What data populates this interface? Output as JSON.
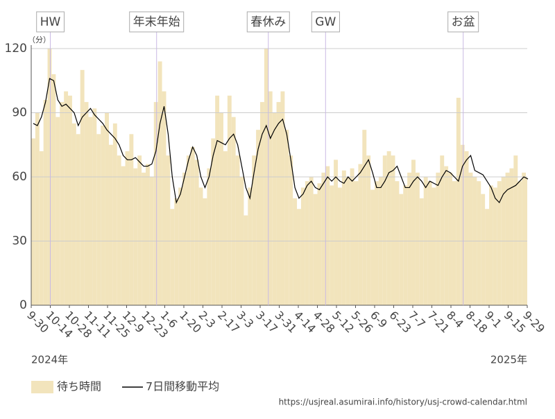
{
  "chart_data": {
    "type": "bar_line",
    "unit_label": "（分）",
    "x": [
      0,
      3,
      6,
      9,
      12,
      15,
      18,
      21,
      24,
      27,
      30,
      33,
      36,
      39,
      42,
      45,
      48,
      51,
      54,
      57,
      60,
      63,
      66,
      69,
      72,
      75,
      78,
      81,
      84,
      87,
      90,
      93,
      96,
      99,
      102,
      105,
      108,
      111,
      114,
      117,
      120,
      123,
      126,
      129,
      132,
      135,
      138,
      141,
      144,
      147,
      150,
      153,
      156,
      159,
      162,
      165,
      168,
      171,
      174,
      177,
      180,
      183,
      186,
      189,
      192,
      195,
      198,
      201,
      204,
      207,
      210,
      213,
      216,
      219,
      222,
      225,
      228,
      231,
      234,
      237,
      240,
      243,
      246,
      249,
      252,
      255,
      258,
      261,
      264,
      267,
      270,
      273,
      276,
      279,
      282,
      285,
      288,
      291,
      294,
      297,
      300,
      303,
      306,
      309,
      312,
      315,
      318,
      321,
      324,
      327,
      330,
      333,
      336,
      339,
      342,
      345,
      348,
      351,
      354,
      357,
      360,
      363
    ],
    "series": [
      {
        "name": "待ち時間",
        "color": "#f2e4bc",
        "values": [
          78,
          90,
          72,
          96,
          120,
          108,
          88,
          95,
          100,
          98,
          85,
          80,
          110,
          95,
          88,
          92,
          80,
          84,
          90,
          75,
          85,
          70,
          65,
          72,
          80,
          64,
          70,
          62,
          66,
          60,
          95,
          114,
          100,
          70,
          45,
          50,
          55,
          62,
          70,
          74,
          68,
          55,
          50,
          64,
          78,
          98,
          90,
          72,
          98,
          88,
          70,
          60,
          42,
          55,
          70,
          82,
          95,
          120,
          100,
          90,
          95,
          100,
          82,
          70,
          50,
          45,
          55,
          58,
          60,
          52,
          57,
          62,
          65,
          56,
          68,
          55,
          63,
          60,
          64,
          58,
          66,
          82,
          70,
          54,
          58,
          60,
          70,
          72,
          70,
          58,
          52,
          56,
          62,
          68,
          62,
          50,
          60,
          58,
          55,
          62,
          70,
          65,
          62,
          58,
          97,
          75,
          72,
          62,
          60,
          58,
          52,
          45,
          56,
          55,
          58,
          60,
          62,
          64,
          70,
          58,
          62,
          60
        ]
      },
      {
        "name": "7日間移動平均",
        "color": "#000000",
        "values": [
          85,
          84,
          88,
          95,
          106,
          105,
          96,
          93,
          94,
          92,
          90,
          84,
          88,
          90,
          92,
          89,
          87,
          85,
          82,
          80,
          78,
          75,
          70,
          68,
          68,
          69,
          67,
          65,
          65,
          66,
          72,
          85,
          93,
          80,
          60,
          48,
          52,
          60,
          68,
          74,
          70,
          60,
          55,
          60,
          70,
          77,
          76,
          75,
          78,
          80,
          75,
          65,
          55,
          50,
          62,
          73,
          80,
          84,
          78,
          82,
          85,
          87,
          80,
          68,
          55,
          50,
          52,
          56,
          58,
          55,
          54,
          57,
          60,
          58,
          60,
          58,
          57,
          60,
          58,
          60,
          62,
          65,
          68,
          62,
          55,
          55,
          58,
          62,
          63,
          65,
          60,
          55,
          55,
          58,
          60,
          58,
          55,
          58,
          57,
          56,
          60,
          63,
          62,
          60,
          58,
          65,
          68,
          70,
          63,
          62,
          61,
          58,
          55,
          50,
          48,
          52,
          54,
          55,
          56,
          58,
          60,
          59
        ]
      }
    ],
    "xlim": [
      0,
      364
    ],
    "xticks": [
      {
        "value": 0,
        "label": "9-30"
      },
      {
        "value": 14,
        "label": "10-14"
      },
      {
        "value": 28,
        "label": "10-28"
      },
      {
        "value": 42,
        "label": "11-11"
      },
      {
        "value": 56,
        "label": "11-25"
      },
      {
        "value": 70,
        "label": "12-9"
      },
      {
        "value": 84,
        "label": "12-23"
      },
      {
        "value": 98,
        "label": "1-6"
      },
      {
        "value": 112,
        "label": "1-20"
      },
      {
        "value": 126,
        "label": "2-3"
      },
      {
        "value": 140,
        "label": "2-17"
      },
      {
        "value": 154,
        "label": "3-3"
      },
      {
        "value": 168,
        "label": "3-17"
      },
      {
        "value": 182,
        "label": "3-31"
      },
      {
        "value": 196,
        "label": "4-14"
      },
      {
        "value": 210,
        "label": "4-28"
      },
      {
        "value": 224,
        "label": "5-12"
      },
      {
        "value": 238,
        "label": "5-26"
      },
      {
        "value": 252,
        "label": "6-9"
      },
      {
        "value": 266,
        "label": "6-23"
      },
      {
        "value": 280,
        "label": "7-7"
      },
      {
        "value": 294,
        "label": "7-21"
      },
      {
        "value": 308,
        "label": "8-4"
      },
      {
        "value": 322,
        "label": "8-18"
      },
      {
        "value": 336,
        "label": "9-1"
      },
      {
        "value": 350,
        "label": "9-15"
      },
      {
        "value": 364,
        "label": "9-29"
      }
    ],
    "ylim": [
      0,
      120
    ],
    "yticks": [
      0,
      30,
      60,
      90,
      120
    ],
    "grid": true,
    "events": [
      {
        "x": 14,
        "label": "HW"
      },
      {
        "x": 92,
        "label": "年末年始"
      },
      {
        "x": 174,
        "label": "春休み"
      },
      {
        "x": 216,
        "label": "GW"
      },
      {
        "x": 317,
        "label": "お盆"
      }
    ],
    "year_start": "2024年",
    "year_end": "2025年",
    "source": "https://usjreal.asumirai.info/history/usj-crowd-calendar.html"
  }
}
